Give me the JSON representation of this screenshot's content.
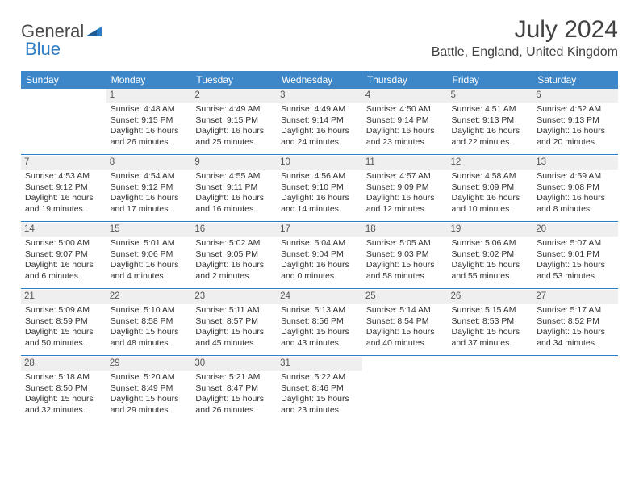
{
  "brand": {
    "part1": "General",
    "part2": "Blue"
  },
  "title": "July 2024",
  "location": "Battle, England, United Kingdom",
  "colors": {
    "header_bg": "#3d87c9",
    "header_text": "#ffffff",
    "sep_line": "#2d7dc7",
    "daynum_bg": "#efefef",
    "text": "#333333"
  },
  "weekdays": [
    "Sunday",
    "Monday",
    "Tuesday",
    "Wednesday",
    "Thursday",
    "Friday",
    "Saturday"
  ],
  "weeks": [
    [
      {
        "blank": true
      },
      {
        "n": "1",
        "sr": "Sunrise: 4:48 AM",
        "ss": "Sunset: 9:15 PM",
        "d1": "Daylight: 16 hours",
        "d2": "and 26 minutes."
      },
      {
        "n": "2",
        "sr": "Sunrise: 4:49 AM",
        "ss": "Sunset: 9:15 PM",
        "d1": "Daylight: 16 hours",
        "d2": "and 25 minutes."
      },
      {
        "n": "3",
        "sr": "Sunrise: 4:49 AM",
        "ss": "Sunset: 9:14 PM",
        "d1": "Daylight: 16 hours",
        "d2": "and 24 minutes."
      },
      {
        "n": "4",
        "sr": "Sunrise: 4:50 AM",
        "ss": "Sunset: 9:14 PM",
        "d1": "Daylight: 16 hours",
        "d2": "and 23 minutes."
      },
      {
        "n": "5",
        "sr": "Sunrise: 4:51 AM",
        "ss": "Sunset: 9:13 PM",
        "d1": "Daylight: 16 hours",
        "d2": "and 22 minutes."
      },
      {
        "n": "6",
        "sr": "Sunrise: 4:52 AM",
        "ss": "Sunset: 9:13 PM",
        "d1": "Daylight: 16 hours",
        "d2": "and 20 minutes."
      }
    ],
    [
      {
        "n": "7",
        "sr": "Sunrise: 4:53 AM",
        "ss": "Sunset: 9:12 PM",
        "d1": "Daylight: 16 hours",
        "d2": "and 19 minutes."
      },
      {
        "n": "8",
        "sr": "Sunrise: 4:54 AM",
        "ss": "Sunset: 9:12 PM",
        "d1": "Daylight: 16 hours",
        "d2": "and 17 minutes."
      },
      {
        "n": "9",
        "sr": "Sunrise: 4:55 AM",
        "ss": "Sunset: 9:11 PM",
        "d1": "Daylight: 16 hours",
        "d2": "and 16 minutes."
      },
      {
        "n": "10",
        "sr": "Sunrise: 4:56 AM",
        "ss": "Sunset: 9:10 PM",
        "d1": "Daylight: 16 hours",
        "d2": "and 14 minutes."
      },
      {
        "n": "11",
        "sr": "Sunrise: 4:57 AM",
        "ss": "Sunset: 9:09 PM",
        "d1": "Daylight: 16 hours",
        "d2": "and 12 minutes."
      },
      {
        "n": "12",
        "sr": "Sunrise: 4:58 AM",
        "ss": "Sunset: 9:09 PM",
        "d1": "Daylight: 16 hours",
        "d2": "and 10 minutes."
      },
      {
        "n": "13",
        "sr": "Sunrise: 4:59 AM",
        "ss": "Sunset: 9:08 PM",
        "d1": "Daylight: 16 hours",
        "d2": "and 8 minutes."
      }
    ],
    [
      {
        "n": "14",
        "sr": "Sunrise: 5:00 AM",
        "ss": "Sunset: 9:07 PM",
        "d1": "Daylight: 16 hours",
        "d2": "and 6 minutes."
      },
      {
        "n": "15",
        "sr": "Sunrise: 5:01 AM",
        "ss": "Sunset: 9:06 PM",
        "d1": "Daylight: 16 hours",
        "d2": "and 4 minutes."
      },
      {
        "n": "16",
        "sr": "Sunrise: 5:02 AM",
        "ss": "Sunset: 9:05 PM",
        "d1": "Daylight: 16 hours",
        "d2": "and 2 minutes."
      },
      {
        "n": "17",
        "sr": "Sunrise: 5:04 AM",
        "ss": "Sunset: 9:04 PM",
        "d1": "Daylight: 16 hours",
        "d2": "and 0 minutes."
      },
      {
        "n": "18",
        "sr": "Sunrise: 5:05 AM",
        "ss": "Sunset: 9:03 PM",
        "d1": "Daylight: 15 hours",
        "d2": "and 58 minutes."
      },
      {
        "n": "19",
        "sr": "Sunrise: 5:06 AM",
        "ss": "Sunset: 9:02 PM",
        "d1": "Daylight: 15 hours",
        "d2": "and 55 minutes."
      },
      {
        "n": "20",
        "sr": "Sunrise: 5:07 AM",
        "ss": "Sunset: 9:01 PM",
        "d1": "Daylight: 15 hours",
        "d2": "and 53 minutes."
      }
    ],
    [
      {
        "n": "21",
        "sr": "Sunrise: 5:09 AM",
        "ss": "Sunset: 8:59 PM",
        "d1": "Daylight: 15 hours",
        "d2": "and 50 minutes."
      },
      {
        "n": "22",
        "sr": "Sunrise: 5:10 AM",
        "ss": "Sunset: 8:58 PM",
        "d1": "Daylight: 15 hours",
        "d2": "and 48 minutes."
      },
      {
        "n": "23",
        "sr": "Sunrise: 5:11 AM",
        "ss": "Sunset: 8:57 PM",
        "d1": "Daylight: 15 hours",
        "d2": "and 45 minutes."
      },
      {
        "n": "24",
        "sr": "Sunrise: 5:13 AM",
        "ss": "Sunset: 8:56 PM",
        "d1": "Daylight: 15 hours",
        "d2": "and 43 minutes."
      },
      {
        "n": "25",
        "sr": "Sunrise: 5:14 AM",
        "ss": "Sunset: 8:54 PM",
        "d1": "Daylight: 15 hours",
        "d2": "and 40 minutes."
      },
      {
        "n": "26",
        "sr": "Sunrise: 5:15 AM",
        "ss": "Sunset: 8:53 PM",
        "d1": "Daylight: 15 hours",
        "d2": "and 37 minutes."
      },
      {
        "n": "27",
        "sr": "Sunrise: 5:17 AM",
        "ss": "Sunset: 8:52 PM",
        "d1": "Daylight: 15 hours",
        "d2": "and 34 minutes."
      }
    ],
    [
      {
        "n": "28",
        "sr": "Sunrise: 5:18 AM",
        "ss": "Sunset: 8:50 PM",
        "d1": "Daylight: 15 hours",
        "d2": "and 32 minutes."
      },
      {
        "n": "29",
        "sr": "Sunrise: 5:20 AM",
        "ss": "Sunset: 8:49 PM",
        "d1": "Daylight: 15 hours",
        "d2": "and 29 minutes."
      },
      {
        "n": "30",
        "sr": "Sunrise: 5:21 AM",
        "ss": "Sunset: 8:47 PM",
        "d1": "Daylight: 15 hours",
        "d2": "and 26 minutes."
      },
      {
        "n": "31",
        "sr": "Sunrise: 5:22 AM",
        "ss": "Sunset: 8:46 PM",
        "d1": "Daylight: 15 hours",
        "d2": "and 23 minutes."
      },
      {
        "blank": true
      },
      {
        "blank": true
      },
      {
        "blank": true
      }
    ]
  ]
}
